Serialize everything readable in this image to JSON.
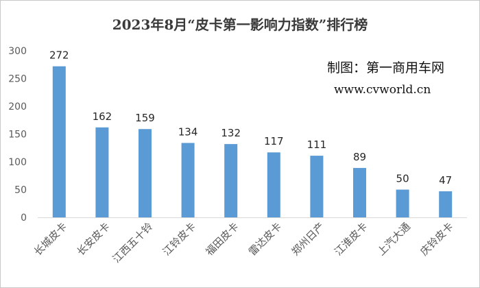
{
  "chart_data": {
    "type": "bar",
    "title": "2023年8月“皮卡第一影响力指数”排行榜",
    "categories": [
      "长城皮卡",
      "长安皮卡",
      "江西五十铃",
      "江铃皮卡",
      "福田皮卡",
      "雷达皮卡",
      "郑州日产",
      "江淮皮卡",
      "上汽大通",
      "庆铃皮卡"
    ],
    "values": [
      272,
      162,
      159,
      134,
      132,
      117,
      111,
      89,
      50,
      47
    ],
    "ylim": [
      0,
      300
    ],
    "yticks": [
      0,
      50,
      100,
      150,
      200,
      250,
      300
    ],
    "grid": false,
    "bar_color": "#5b9bd5",
    "annotations": {
      "producer": "制图：第一商用车网",
      "website": "www.cvworld.cn"
    }
  }
}
